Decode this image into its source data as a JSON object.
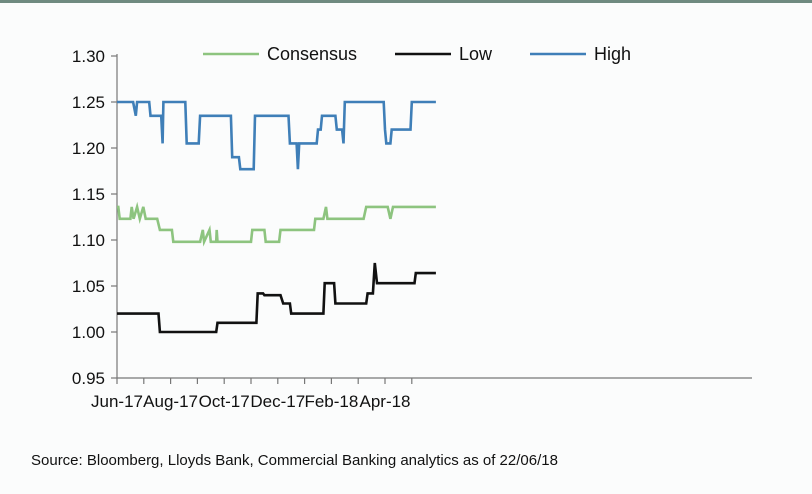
{
  "chart_data": {
    "type": "line",
    "title": "",
    "xlabel": "",
    "ylabel": "",
    "ylim": [
      0.95,
      1.3
    ],
    "yticks": [
      "1.30",
      "1.25",
      "1.20",
      "1.15",
      "1.10",
      "1.05",
      "1.00",
      "0.95"
    ],
    "xticks": [
      "Jun-17",
      "Aug-17",
      "Oct-17",
      "Dec-17",
      "Feb-18",
      "Apr-18"
    ],
    "grid": false,
    "legend": "top",
    "series": [
      {
        "name": "Consensus",
        "color": "#8dc47f",
        "points": [
          [
            0,
            1.136
          ],
          [
            0.05,
            1.136
          ],
          [
            0.1,
            1.123
          ],
          [
            0.5,
            1.123
          ],
          [
            0.55,
            1.136
          ],
          [
            0.62,
            1.123
          ],
          [
            0.75,
            1.136
          ],
          [
            0.85,
            1.123
          ],
          [
            0.98,
            1.136
          ],
          [
            1.07,
            1.123
          ],
          [
            1.5,
            1.123
          ],
          [
            1.6,
            1.111
          ],
          [
            2.05,
            1.111
          ],
          [
            2.1,
            1.098
          ],
          [
            3.1,
            1.098
          ],
          [
            3.2,
            1.111
          ],
          [
            3.25,
            1.098
          ],
          [
            3.45,
            1.111
          ],
          [
            3.5,
            1.098
          ],
          [
            3.7,
            1.098
          ],
          [
            3.72,
            1.111
          ],
          [
            3.75,
            1.098
          ],
          [
            5,
            1.098
          ],
          [
            5.05,
            1.111
          ],
          [
            5.5,
            1.111
          ],
          [
            5.55,
            1.098
          ],
          [
            6.05,
            1.098
          ],
          [
            6.1,
            1.111
          ],
          [
            7.35,
            1.111
          ],
          [
            7.4,
            1.123
          ],
          [
            7.7,
            1.123
          ],
          [
            7.8,
            1.136
          ],
          [
            7.85,
            1.123
          ],
          [
            9.2,
            1.123
          ],
          [
            9.3,
            1.136
          ],
          [
            10.1,
            1.136
          ],
          [
            10.2,
            1.123
          ],
          [
            10.3,
            1.136
          ],
          [
            11.9,
            1.136
          ]
        ]
      },
      {
        "name": "Low",
        "color": "#111111",
        "points": [
          [
            0,
            1.02
          ],
          [
            1.55,
            1.02
          ],
          [
            1.6,
            1.0
          ],
          [
            3.7,
            1.0
          ],
          [
            3.75,
            1.01
          ],
          [
            5.2,
            1.01
          ],
          [
            5.25,
            1.042
          ],
          [
            5.45,
            1.042
          ],
          [
            5.5,
            1.04
          ],
          [
            6.1,
            1.04
          ],
          [
            6.2,
            1.031
          ],
          [
            6.45,
            1.031
          ],
          [
            6.5,
            1.02
          ],
          [
            7.7,
            1.02
          ],
          [
            7.75,
            1.053
          ],
          [
            8.1,
            1.053
          ],
          [
            8.15,
            1.031
          ],
          [
            9.3,
            1.031
          ],
          [
            9.35,
            1.042
          ],
          [
            9.55,
            1.042
          ],
          [
            9.62,
            1.075
          ],
          [
            9.7,
            1.053
          ],
          [
            11.1,
            1.053
          ],
          [
            11.15,
            1.064
          ],
          [
            11.9,
            1.064
          ]
        ]
      },
      {
        "name": "High",
        "color": "#3f7fb8",
        "points": [
          [
            0,
            1.25
          ],
          [
            0.6,
            1.25
          ],
          [
            0.7,
            1.235
          ],
          [
            0.75,
            1.25
          ],
          [
            1.2,
            1.25
          ],
          [
            1.25,
            1.235
          ],
          [
            1.65,
            1.235
          ],
          [
            1.7,
            1.205
          ],
          [
            1.73,
            1.25
          ],
          [
            2.55,
            1.25
          ],
          [
            2.6,
            1.205
          ],
          [
            3.05,
            1.205
          ],
          [
            3.1,
            1.235
          ],
          [
            4.25,
            1.235
          ],
          [
            4.3,
            1.19
          ],
          [
            4.55,
            1.19
          ],
          [
            4.6,
            1.177
          ],
          [
            5.1,
            1.177
          ],
          [
            5.15,
            1.235
          ],
          [
            6.4,
            1.235
          ],
          [
            6.45,
            1.205
          ],
          [
            6.7,
            1.205
          ],
          [
            6.75,
            1.177
          ],
          [
            6.8,
            1.205
          ],
          [
            7.45,
            1.205
          ],
          [
            7.5,
            1.22
          ],
          [
            7.6,
            1.22
          ],
          [
            7.65,
            1.235
          ],
          [
            8.15,
            1.235
          ],
          [
            8.2,
            1.22
          ],
          [
            8.4,
            1.22
          ],
          [
            8.45,
            1.205
          ],
          [
            8.5,
            1.25
          ],
          [
            9.95,
            1.25
          ],
          [
            10.0,
            1.22
          ],
          [
            10.05,
            1.205
          ],
          [
            10.2,
            1.205
          ],
          [
            10.25,
            1.22
          ],
          [
            10.95,
            1.22
          ],
          [
            11.0,
            1.25
          ],
          [
            11.9,
            1.25
          ]
        ]
      }
    ]
  },
  "footer": {
    "source": "Source: Bloomberg, Lloyds Bank, Commercial Banking analytics as of 22/06/18"
  }
}
